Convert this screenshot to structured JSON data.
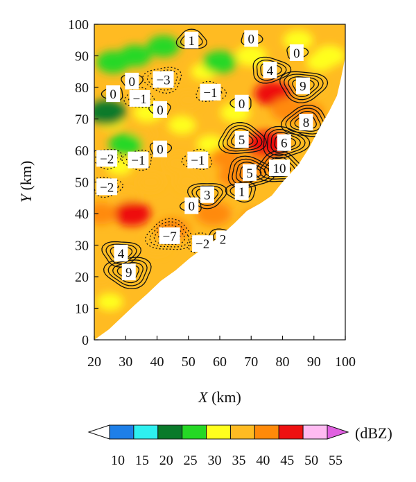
{
  "chart_data": {
    "type": "heatmap",
    "title": "",
    "xlabel": {
      "var": "X",
      "unit": " (km)"
    },
    "ylabel": {
      "var": "Y",
      "unit": " (km)"
    },
    "xlim": [
      20,
      100
    ],
    "ylim": [
      0,
      100
    ],
    "xticks": [
      20,
      30,
      40,
      50,
      60,
      70,
      80,
      90,
      100
    ],
    "yticks": [
      0,
      10,
      20,
      30,
      40,
      50,
      60,
      70,
      80,
      90,
      100
    ],
    "colorbar": {
      "unit": "(dBZ)",
      "ticks": [
        10,
        15,
        20,
        25,
        30,
        35,
        40,
        45,
        50,
        55
      ],
      "colors": [
        "#ffffff",
        "#1e7fe8",
        "#2ef0f0",
        "#0a7a2a",
        "#25d825",
        "#ffff1e",
        "#ffbb22",
        "#ff8a0a",
        "#ee1111",
        "#ffbbf2",
        "#e060e0"
      ],
      "extend": "both"
    },
    "contour_labels": [
      {
        "x": 51,
        "y": 95,
        "text": "1"
      },
      {
        "x": 70,
        "y": 95.5,
        "text": "0"
      },
      {
        "x": 84.5,
        "y": 91,
        "text": "0"
      },
      {
        "x": 32,
        "y": 82,
        "text": "0"
      },
      {
        "x": 42,
        "y": 82.5,
        "text": "−3"
      },
      {
        "x": 26,
        "y": 78,
        "text": "0"
      },
      {
        "x": 34.5,
        "y": 76.5,
        "text": "−1"
      },
      {
        "x": 57,
        "y": 78.5,
        "text": "−1"
      },
      {
        "x": 76,
        "y": 85.5,
        "text": "4"
      },
      {
        "x": 86.5,
        "y": 80.5,
        "text": "9"
      },
      {
        "x": 41,
        "y": 73,
        "text": "0"
      },
      {
        "x": 67,
        "y": 75,
        "text": "0"
      },
      {
        "x": 87.5,
        "y": 69,
        "text": "8"
      },
      {
        "x": 67,
        "y": 63.5,
        "text": "5"
      },
      {
        "x": 80.5,
        "y": 62.5,
        "text": "6"
      },
      {
        "x": 41,
        "y": 60.5,
        "text": "0"
      },
      {
        "x": 24,
        "y": 57.5,
        "text": "−2"
      },
      {
        "x": 34,
        "y": 57,
        "text": "−1"
      },
      {
        "x": 53,
        "y": 57,
        "text": "−1"
      },
      {
        "x": 79,
        "y": 54.5,
        "text": "10"
      },
      {
        "x": 69.5,
        "y": 53,
        "text": "5"
      },
      {
        "x": 24,
        "y": 48.5,
        "text": "−2"
      },
      {
        "x": 56,
        "y": 46,
        "text": "3"
      },
      {
        "x": 67,
        "y": 47,
        "text": "1"
      },
      {
        "x": 51,
        "y": 42.5,
        "text": "0"
      },
      {
        "x": 44,
        "y": 33,
        "text": "−7"
      },
      {
        "x": 54.5,
        "y": 30.5,
        "text": "−2"
      },
      {
        "x": 61,
        "y": 32,
        "text": "2"
      },
      {
        "x": 28.5,
        "y": 27.5,
        "text": "4"
      },
      {
        "x": 31,
        "y": 21.5,
        "text": "9"
      }
    ],
    "reflectivity_cells": [
      {
        "x": 45,
        "y": 70,
        "dbz": 36
      },
      {
        "x": 35,
        "y": 65,
        "dbz": 36
      },
      {
        "x": 30,
        "y": 45,
        "dbz": 37
      },
      {
        "x": 50,
        "y": 50,
        "dbz": 36
      },
      {
        "x": 40,
        "y": 30,
        "dbz": 37
      },
      {
        "x": 55,
        "y": 85,
        "dbz": 34
      },
      {
        "x": 70,
        "y": 40,
        "dbz": 37
      },
      {
        "x": 30,
        "y": 25,
        "dbz": 38
      },
      {
        "x": 25,
        "y": 70,
        "dbz": 30
      },
      {
        "x": 28,
        "y": 55,
        "dbz": 34
      },
      {
        "x": 33,
        "y": 90,
        "dbz": 29
      },
      {
        "x": 26,
        "y": 88,
        "dbz": 28
      },
      {
        "x": 42,
        "y": 93,
        "dbz": 29
      },
      {
        "x": 24,
        "y": 72,
        "dbz": 24
      },
      {
        "x": 30,
        "y": 62,
        "dbz": 28
      },
      {
        "x": 60,
        "y": 88,
        "dbz": 28
      },
      {
        "x": 70,
        "y": 90,
        "dbz": 30
      },
      {
        "x": 85,
        "y": 95,
        "dbz": 31
      },
      {
        "x": 92,
        "y": 88,
        "dbz": 33
      },
      {
        "x": 48,
        "y": 68,
        "dbz": 33
      },
      {
        "x": 65,
        "y": 72,
        "dbz": 31
      },
      {
        "x": 57,
        "y": 62,
        "dbz": 33
      },
      {
        "x": 77,
        "y": 78,
        "dbz": 45
      },
      {
        "x": 82,
        "y": 73,
        "dbz": 44
      },
      {
        "x": 75,
        "y": 62,
        "dbz": 47
      },
      {
        "x": 72,
        "y": 55,
        "dbz": 42
      },
      {
        "x": 88,
        "y": 72,
        "dbz": 41
      },
      {
        "x": 65,
        "y": 52,
        "dbz": 43
      },
      {
        "x": 58,
        "y": 40,
        "dbz": 44
      },
      {
        "x": 32,
        "y": 40,
        "dbz": 45
      },
      {
        "x": 45,
        "y": 35,
        "dbz": 42
      },
      {
        "x": 72,
        "y": 38,
        "dbz": 41
      },
      {
        "x": 80,
        "y": 40,
        "dbz": 38
      },
      {
        "x": 26,
        "y": 25,
        "dbz": 36
      },
      {
        "x": 25,
        "y": 12,
        "dbz": 34
      },
      {
        "x": 22,
        "y": 40,
        "dbz": 41
      },
      {
        "x": 38,
        "y": 50,
        "dbz": 35
      },
      {
        "x": 62,
        "y": 58,
        "dbz": 40
      },
      {
        "x": 90,
        "y": 80,
        "dbz": 37
      },
      {
        "x": 95,
        "y": 90,
        "dbz": 30
      },
      {
        "x": 37,
        "y": 72,
        "dbz": 32
      },
      {
        "x": 22,
        "y": 20,
        "dbz": 35
      },
      {
        "x": 50,
        "y": 76,
        "dbz": 35
      },
      {
        "x": 47,
        "y": 56,
        "dbz": 38
      }
    ]
  }
}
